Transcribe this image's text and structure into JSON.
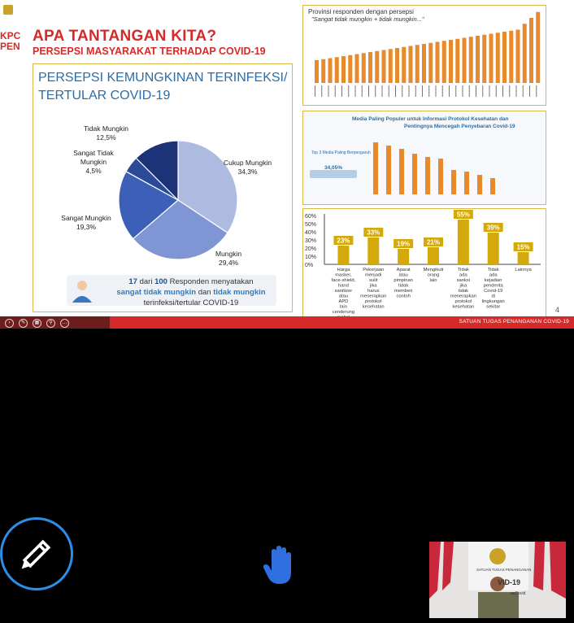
{
  "slide": {
    "logo_lines": [
      "KPC",
      "PEN"
    ],
    "title": "APA TANTANGAN KITA?",
    "subtitle": "PERSEPSI MASYARAKAT TERHADAP COVID-19",
    "page_number": "4",
    "footer": "SATUAN TUGAS PENANGANAN COVID-19"
  },
  "left_panel": {
    "title_line1": "PERSEPSI KEMUNGKINAN TERINFEKSI/",
    "title_line2": "TERTULAR COVID-19",
    "pie": [
      {
        "label": "Cukup Mungkin",
        "value": "34,3%",
        "pct": 34.3,
        "color": "#aebbe0"
      },
      {
        "label": "Mungkin",
        "value": "29,4%",
        "pct": 29.4,
        "color": "#7f95d4"
      },
      {
        "label": "Sangat Mungkin",
        "value": "19,3%",
        "pct": 19.3,
        "color": "#3c5fb8"
      },
      {
        "label": "Sangat Tidak Mungkin",
        "value": "4,5%",
        "pct": 4.5,
        "color": "#2c4a98"
      },
      {
        "label": "Tidak Mungkin",
        "value": "12,5%",
        "pct": 12.5,
        "color": "#1c3477"
      }
    ],
    "note": {
      "n": "17",
      "mid1": "dari",
      "total": "100",
      "mid2": "Responden menyatakan",
      "a": "sangat tidak mungkin",
      "mid3": "dan",
      "b": "tidak mungkin",
      "end": "terinfeksi/tertular COVID-19"
    }
  },
  "right_top": {
    "title": "Provinsi responden dengan persepsi",
    "subtitle": "\"Sangat tidak mungkin + tidak mungkin...\""
  },
  "right_mid": {
    "title": "Media Paling Populer untuk Informasi Protokol Kesehatan dan",
    "title2": "Pentingnya Mencegah Penyebaran Covid-19",
    "top3": "Top 3 Media Paling Berpengaruh",
    "top3_value": "34,05%"
  },
  "right_bottom": {
    "chart_data": {
      "type": "bar",
      "categories": [
        "Harga masker, face-shield, hand sanitizer atau APD lain cenderung mahal",
        "Pekerjaan menjadi sulit jika harus menerapkan protokol kesehatan",
        "Aparat atau pimpinan tidak memberi contoh",
        "Mengikuti orang lain",
        "Tidak ada sanksi jika tidak menerapkan protokol kesehatan",
        "Tidak ada kejadian penderita Covid-19 di lingkungan sekitar",
        "Lainnya"
      ],
      "values": [
        23,
        33,
        19,
        21,
        55,
        39,
        15
      ],
      "data_labels": [
        "23%",
        "33%",
        "19%",
        "21%",
        "55%",
        "39%",
        "15%"
      ],
      "y_ticks": [
        "60%",
        "50%",
        "40%",
        "30%",
        "20%",
        "10%",
        "0%"
      ],
      "ylim": [
        0,
        60
      ],
      "color": "#d4a90c"
    }
  },
  "controls": {
    "pen": "pen-icon",
    "hand": "raise-hand-icon"
  },
  "video": {
    "banner_text": "SATUAN TUGAS PENANGANAN",
    "covid_text": "VID-19",
    "tag": "anCovid"
  }
}
